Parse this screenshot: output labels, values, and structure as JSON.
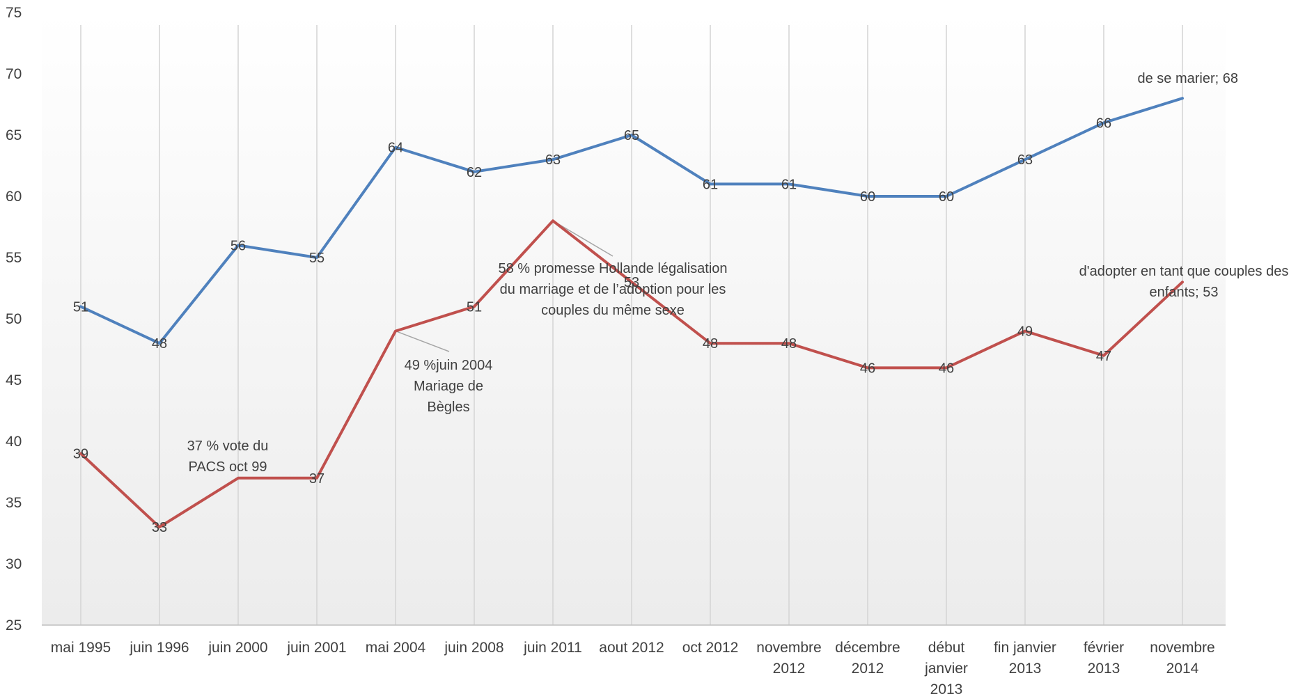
{
  "chart_data": {
    "type": "line",
    "categories": [
      [
        "mai 1995"
      ],
      [
        "juin 1996"
      ],
      [
        "juin 2000"
      ],
      [
        "juin 2001"
      ],
      [
        "mai 2004"
      ],
      [
        "juin 2008"
      ],
      [
        "juin 2011"
      ],
      [
        "aout 2012"
      ],
      [
        "oct 2012"
      ],
      [
        "novembre",
        "2012"
      ],
      [
        "décembre",
        "2012"
      ],
      [
        "début",
        "janvier",
        "2013"
      ],
      [
        "fin janvier",
        "2013"
      ],
      [
        "février",
        "2013"
      ],
      [
        "novembre",
        "2014"
      ]
    ],
    "series": [
      {
        "color": "#4F81BD",
        "values": [
          51,
          48,
          56,
          55,
          64,
          62,
          63,
          65,
          61,
          61,
          60,
          60,
          63,
          66,
          68
        ],
        "labels": [
          "51",
          "48",
          "56",
          "55",
          "64",
          "62",
          "63",
          "65",
          "61",
          "61",
          "60",
          "60",
          "63",
          "66",
          "de se marier; 68"
        ]
      },
      {
        "color": "#C0504D",
        "values": [
          39,
          33,
          37,
          37,
          49,
          51,
          58,
          53,
          48,
          48,
          46,
          46,
          49,
          47,
          53
        ],
        "labels": [
          "39",
          "33",
          "",
          "37",
          "",
          "51",
          "",
          "53",
          "48",
          "48",
          "46",
          "46",
          "49",
          "47",
          ""
        ]
      }
    ],
    "annotations": [
      {
        "index": 2,
        "lines": [
          "37 % vote du",
          "PACS oct 99"
        ]
      },
      {
        "index": 4,
        "lines": [
          "49 %juin 2004",
          "Mariage de",
          "Bègles"
        ]
      },
      {
        "index": 6,
        "lines": [
          "58 % promesse Hollande légalisation",
          "du marriage et de l’adoption pour les",
          "couples du même sexe"
        ]
      },
      {
        "index": 14,
        "lines": [
          "d'adopter en tant que couples des",
          "enfants; 53"
        ]
      }
    ],
    "y_ticks": [
      25,
      30,
      35,
      40,
      45,
      50,
      55,
      60,
      65,
      70,
      75
    ],
    "ylim": [
      25,
      75
    ],
    "grid": "vertical category lines",
    "legend": "none",
    "background": [
      "#ffffff",
      "#ececec"
    ]
  }
}
